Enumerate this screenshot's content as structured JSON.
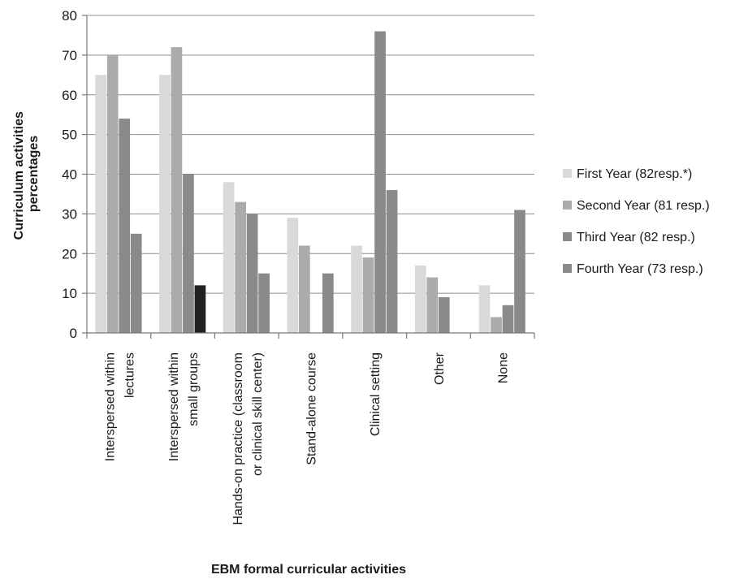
{
  "chart_data": {
    "type": "bar",
    "xlabel": "EBM formal curricular activities",
    "ylabel_lines": [
      "Curriculum activities",
      "percentages"
    ],
    "ylim": [
      0,
      80
    ],
    "yticks": [
      "0",
      "10",
      "20",
      "30",
      "40",
      "50",
      "60",
      "70",
      "80"
    ],
    "grid": true,
    "legend_position": "right",
    "categories": [
      [
        "Interspersed within",
        "lectures"
      ],
      [
        "Interspersed within",
        "small groups"
      ],
      [
        "Hands-on practice (classroom",
        "or clinical skill center)"
      ],
      [
        "Stand-alone course"
      ],
      [
        "Clinical setting"
      ],
      [
        "Other"
      ],
      [
        "None"
      ]
    ],
    "series": [
      {
        "name": "First Year (82resp.*)",
        "color": "#d9d9d9",
        "values": [
          65,
          65,
          38,
          29,
          22,
          17,
          12
        ]
      },
      {
        "name": "Second Year (81 resp.)",
        "color": "#ababab",
        "values": [
          70,
          72,
          33,
          22,
          19,
          14,
          4
        ]
      },
      {
        "name": "Third Year (82 resp.)",
        "color": "#8a8a8a",
        "values": [
          54,
          40,
          30,
          0,
          76,
          9,
          7
        ]
      },
      {
        "name": "Fourth Year (73 resp.)",
        "color": "#8a8a8a",
        "values": [
          25,
          12,
          15,
          15,
          36,
          0,
          31
        ]
      }
    ],
    "highlight": {
      "series": 3,
      "category": 1,
      "color": "#222222"
    }
  }
}
